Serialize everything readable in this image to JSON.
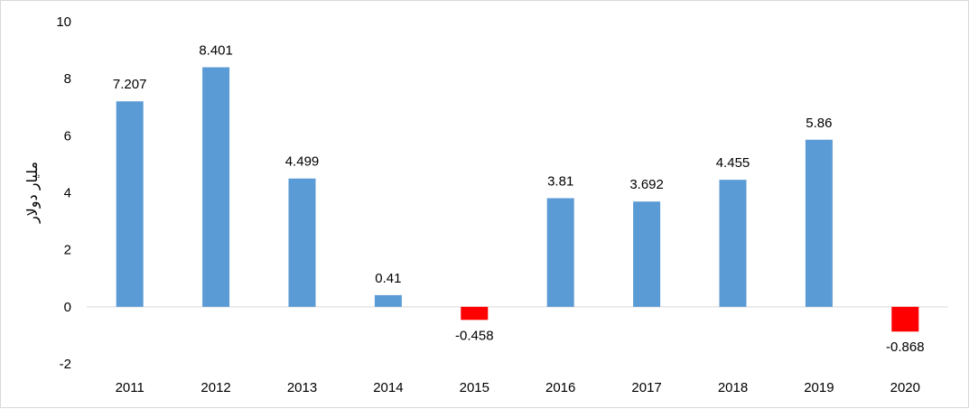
{
  "chart_data": {
    "type": "bar",
    "title": "",
    "xlabel": "",
    "ylabel": "مليار دولار",
    "categories": [
      "2011",
      "2012",
      "2013",
      "2014",
      "2015",
      "2016",
      "2017",
      "2018",
      "2019",
      "2020"
    ],
    "values": [
      7.207,
      8.401,
      4.499,
      0.41,
      -0.458,
      3.81,
      3.692,
      4.455,
      5.86,
      -0.868
    ],
    "data_labels": [
      "7.207",
      "8.401",
      "4.499",
      "0.41",
      "-0.458",
      "3.81",
      "3.692",
      "4.455",
      "5.86",
      "-0.868"
    ],
    "ylim": [
      -2,
      10
    ],
    "yticks": [
      -2,
      0,
      2,
      4,
      6,
      8,
      10
    ],
    "grid": false,
    "legend": "none",
    "colors": {
      "positive": "#5b9bd5",
      "negative": "#ff0000",
      "axis": "#d9d9d9"
    }
  }
}
